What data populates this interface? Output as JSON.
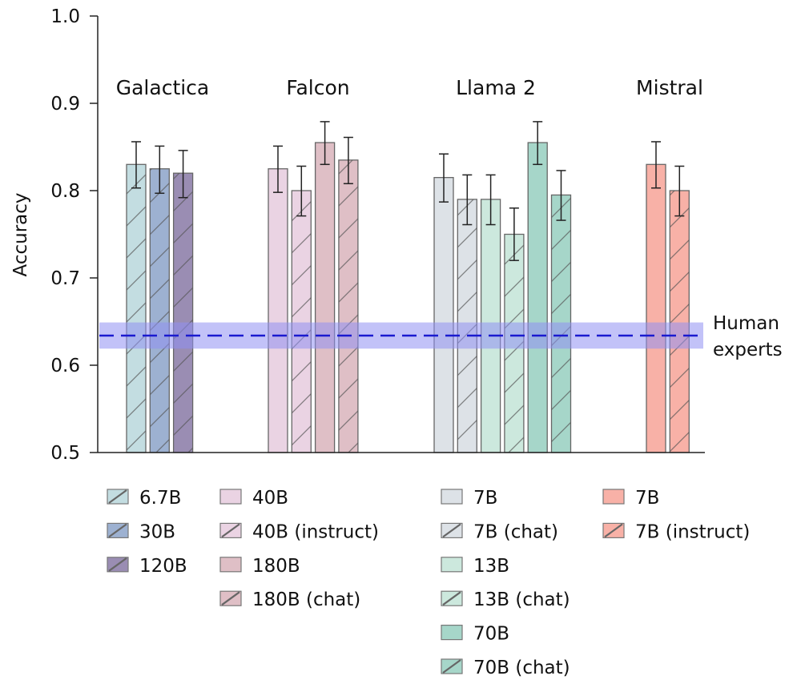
{
  "chart_data": {
    "type": "bar",
    "title": "",
    "xlabel": "",
    "ylabel": "Accuracy",
    "ylim": [
      0.5,
      1.0
    ],
    "yticks": [
      "0.5",
      "0.6",
      "0.7",
      "0.8",
      "0.9",
      "1.0"
    ],
    "grid": false,
    "groups": [
      {
        "name": "Galactica",
        "bars": [
          {
            "label": "6.7B",
            "value": 0.83,
            "err_low": 0.803,
            "err_high": 0.856,
            "color": "#c3dde1",
            "hatched": true
          },
          {
            "label": "30B",
            "value": 0.825,
            "err_low": 0.797,
            "err_high": 0.851,
            "color": "#9db1d1",
            "hatched": true
          },
          {
            "label": "120B",
            "value": 0.82,
            "err_low": 0.792,
            "err_high": 0.846,
            "color": "#9a8db3",
            "hatched": true
          }
        ]
      },
      {
        "name": "Falcon",
        "bars": [
          {
            "label": "40B",
            "value": 0.825,
            "err_low": 0.798,
            "err_high": 0.851,
            "color": "#ead3e3",
            "hatched": false
          },
          {
            "label": "40B (instruct)",
            "value": 0.8,
            "err_low": 0.771,
            "err_high": 0.828,
            "color": "#ead3e3",
            "hatched": true
          },
          {
            "label": "180B",
            "value": 0.855,
            "err_low": 0.83,
            "err_high": 0.879,
            "color": "#dfbfc6",
            "hatched": false
          },
          {
            "label": "180B (chat)",
            "value": 0.835,
            "err_low": 0.808,
            "err_high": 0.861,
            "color": "#dfbfc6",
            "hatched": true
          }
        ]
      },
      {
        "name": "Llama 2",
        "bars": [
          {
            "label": "7B",
            "value": 0.815,
            "err_low": 0.787,
            "err_high": 0.842,
            "color": "#dde2e7",
            "hatched": false
          },
          {
            "label": "7B (chat)",
            "value": 0.79,
            "err_low": 0.761,
            "err_high": 0.818,
            "color": "#dde2e7",
            "hatched": true
          },
          {
            "label": "13B",
            "value": 0.79,
            "err_low": 0.761,
            "err_high": 0.818,
            "color": "#cce8dd",
            "hatched": false
          },
          {
            "label": "13B (chat)",
            "value": 0.75,
            "err_low": 0.72,
            "err_high": 0.78,
            "color": "#cce8dd",
            "hatched": true
          },
          {
            "label": "70B",
            "value": 0.855,
            "err_low": 0.83,
            "err_high": 0.879,
            "color": "#a6d6c9",
            "hatched": false
          },
          {
            "label": "70B (chat)",
            "value": 0.795,
            "err_low": 0.766,
            "err_high": 0.823,
            "color": "#a6d6c9",
            "hatched": true
          }
        ]
      },
      {
        "name": "Mistral",
        "bars": [
          {
            "label": "7B",
            "value": 0.83,
            "err_low": 0.803,
            "err_high": 0.856,
            "color": "#f8b1a7",
            "hatched": false
          },
          {
            "label": "7B (instruct)",
            "value": 0.8,
            "err_low": 0.771,
            "err_high": 0.828,
            "color": "#f8b1a7",
            "hatched": true
          }
        ]
      }
    ],
    "reference": {
      "label_lines": [
        "Human",
        "experts"
      ],
      "value": 0.634,
      "band_low": 0.619,
      "band_high": 0.649,
      "line_color": "#1a1ad0",
      "band_color": "#8f8ff2"
    },
    "legend": {
      "placement": "bottom",
      "columns": [
        [
          "6.7B",
          "30B",
          "120B"
        ],
        [
          "40B",
          "40B (instruct)",
          "180B",
          "180B (chat)"
        ],
        [
          "7B",
          "7B (chat)",
          "13B",
          "13B (chat)",
          "70B",
          "70B (chat)"
        ],
        [
          "7B",
          "7B (instruct)"
        ]
      ]
    }
  }
}
